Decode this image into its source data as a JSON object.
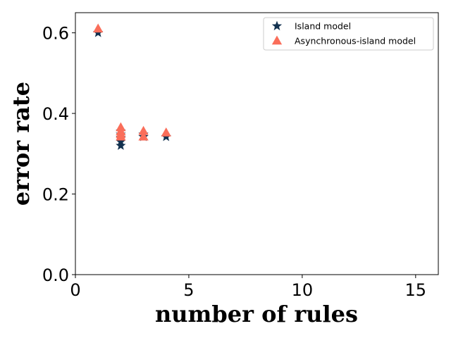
{
  "chart_data": {
    "type": "scatter",
    "xlabel": "number of rules",
    "ylabel": "error rate",
    "xlim": [
      0,
      16
    ],
    "ylim": [
      0,
      0.65
    ],
    "xticks": [
      0,
      5,
      10,
      15
    ],
    "yticks": [
      0.0,
      0.2,
      0.4,
      0.6
    ],
    "xtick_labels": [
      "0",
      "5",
      "10",
      "15"
    ],
    "ytick_labels": [
      "0.0",
      "0.2",
      "0.4",
      "0.6"
    ],
    "grid": false,
    "legend_position": "top-right",
    "series": [
      {
        "name": "Island model",
        "marker": "star",
        "color": "#12314f",
        "points": [
          {
            "x": 1,
            "y": 0.6
          },
          {
            "x": 2,
            "y": 0.356
          },
          {
            "x": 2,
            "y": 0.348
          },
          {
            "x": 2,
            "y": 0.34
          },
          {
            "x": 2,
            "y": 0.33
          },
          {
            "x": 2,
            "y": 0.32
          },
          {
            "x": 3,
            "y": 0.348
          },
          {
            "x": 3,
            "y": 0.342
          },
          {
            "x": 4,
            "y": 0.342
          }
        ]
      },
      {
        "name": "Asynchronous-island model",
        "marker": "triangle",
        "color": "#fa6e5a",
        "points": [
          {
            "x": 1,
            "y": 0.61
          },
          {
            "x": 2,
            "y": 0.365
          },
          {
            "x": 2,
            "y": 0.355
          },
          {
            "x": 2,
            "y": 0.348
          },
          {
            "x": 2,
            "y": 0.342
          },
          {
            "x": 3,
            "y": 0.356
          },
          {
            "x": 3,
            "y": 0.342
          },
          {
            "x": 4,
            "y": 0.352
          }
        ]
      }
    ]
  }
}
